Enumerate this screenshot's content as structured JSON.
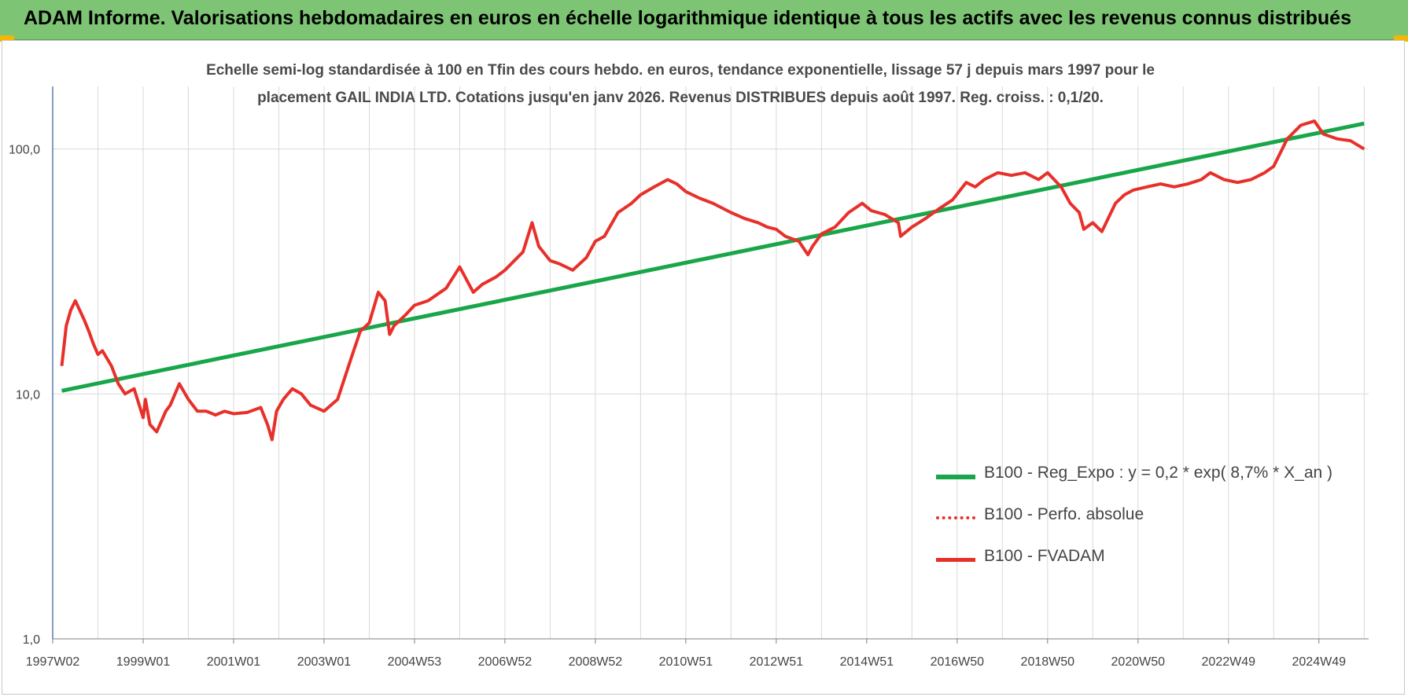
{
  "banner": {
    "title": "ADAM Informe. Valorisations hebdomadaires en euros en échelle logarithmique identique à tous les actifs avec les revenus connus distribués"
  },
  "colors": {
    "banner_bg": "#7dc474",
    "corner_accent": "#f2b705",
    "regression": "#19a64a",
    "performance": "#e8302a",
    "axis_text": "#444444",
    "grid": "#d9d9d9"
  },
  "chart_data": {
    "type": "line",
    "title_line1": "Echelle semi-log standardisée à 100 en Tfin des cours hebdo. en euros, tendance exponentielle, lissage 57 j depuis mars 1997 pour le",
    "title_line2": "placement GAIL INDIA LTD. Cotations jusqu'en janv 2026. Revenus DISTRIBUES depuis août 1997. Reg. croiss. : 0,1/20.",
    "y_scale": "log",
    "ylim": [
      1,
      180
    ],
    "y_ticks": [
      1,
      10,
      100
    ],
    "y_tick_labels": [
      "1,0",
      "10,0",
      "100,0"
    ],
    "x_range_years": [
      1997.0,
      2026.1
    ],
    "x_ticks": [
      {
        "label": "1997W02",
        "year": 1997.0
      },
      {
        "label": "1999W01",
        "year": 1999.0
      },
      {
        "label": "2001W01",
        "year": 2001.0
      },
      {
        "label": "2003W01",
        "year": 2003.0
      },
      {
        "label": "2004W53",
        "year": 2005.0
      },
      {
        "label": "2006W52",
        "year": 2007.0
      },
      {
        "label": "2008W52",
        "year": 2009.0
      },
      {
        "label": "2010W51",
        "year": 2011.0
      },
      {
        "label": "2012W51",
        "year": 2013.0
      },
      {
        "label": "2014W51",
        "year": 2015.0
      },
      {
        "label": "2016W50",
        "year": 2017.0
      },
      {
        "label": "2018W50",
        "year": 2019.0
      },
      {
        "label": "2020W50",
        "year": 2021.0
      },
      {
        "label": "2022W49",
        "year": 2023.0
      },
      {
        "label": "2024W49",
        "year": 2025.0
      }
    ],
    "grid": true,
    "legend_position": "right",
    "series": [
      {
        "name": "B100 - Reg_Expo : y = 0,2 * exp( 8,7% *  X_an )",
        "style": "solid",
        "x": [
          1997.2,
          2026.0
        ],
        "y": [
          10.3,
          127
        ]
      },
      {
        "name": "B100 - Perfo. absolue",
        "style": "dotted",
        "x": [],
        "y": []
      },
      {
        "name": "B100 - FVADAM",
        "style": "solid",
        "x": [
          1997.2,
          1997.3,
          1997.4,
          1997.5,
          1997.7,
          1997.8,
          1997.9,
          1998.0,
          1998.1,
          1998.3,
          1998.45,
          1998.6,
          1998.8,
          1999.0,
          1999.05,
          1999.15,
          1999.3,
          1999.5,
          1999.6,
          1999.8,
          2000.0,
          2000.2,
          2000.4,
          2000.6,
          2000.8,
          2001.0,
          2001.3,
          2001.6,
          2001.75,
          2001.85,
          2001.95,
          2002.1,
          2002.3,
          2002.5,
          2002.7,
          2003.0,
          2003.3,
          2003.6,
          2003.8,
          2004.0,
          2004.2,
          2004.35,
          2004.45,
          2004.55,
          2004.8,
          2005.0,
          2005.3,
          2005.7,
          2006.0,
          2006.3,
          2006.5,
          2006.8,
          2007.0,
          2007.4,
          2007.6,
          2007.75,
          2008.0,
          2008.2,
          2008.5,
          2008.8,
          2009.0,
          2009.2,
          2009.5,
          2009.8,
          2010.0,
          2010.3,
          2010.6,
          2010.8,
          2011.0,
          2011.3,
          2011.6,
          2012.0,
          2012.3,
          2012.6,
          2012.8,
          2013.0,
          2013.2,
          2013.5,
          2013.7,
          2013.8,
          2014.0,
          2014.3,
          2014.6,
          2014.9,
          2015.1,
          2015.4,
          2015.7,
          2015.75,
          2016.0,
          2016.3,
          2016.6,
          2016.9,
          2017.2,
          2017.4,
          2017.6,
          2017.9,
          2018.2,
          2018.5,
          2018.8,
          2019.0,
          2019.3,
          2019.5,
          2019.7,
          2019.8,
          2020.0,
          2020.2,
          2020.5,
          2020.7,
          2020.9,
          2021.2,
          2021.5,
          2021.8,
          2022.1,
          2022.4,
          2022.6,
          2022.9,
          2023.2,
          2023.5,
          2023.8,
          2024.0,
          2024.3,
          2024.6,
          2024.9,
          2025.1,
          2025.4,
          2025.7,
          2026.0
        ],
        "y": [
          13,
          19,
          22,
          24,
          20,
          18,
          16,
          14.5,
          15,
          13,
          11,
          10,
          10.5,
          8,
          9.5,
          7.5,
          7,
          8.5,
          9,
          11,
          9.5,
          8.5,
          8.5,
          8.2,
          8.5,
          8.3,
          8.4,
          8.8,
          7.5,
          6.5,
          8.5,
          9.5,
          10.5,
          10,
          9,
          8.5,
          9.5,
          14,
          18,
          19.5,
          26,
          24,
          17.5,
          19,
          21,
          23,
          24,
          27,
          33,
          26,
          28,
          30,
          32,
          38,
          50,
          40,
          35,
          34,
          32,
          36,
          42,
          44,
          55,
          60,
          65,
          70,
          75,
          72,
          67,
          63,
          60,
          55,
          52,
          50,
          48,
          47,
          44,
          42,
          37,
          40,
          45,
          48,
          55,
          60,
          56,
          54,
          50,
          44,
          48,
          52,
          57,
          62,
          73,
          70,
          75,
          80,
          78,
          80,
          75,
          80,
          70,
          60,
          55,
          47,
          50,
          46,
          60,
          65,
          68,
          70,
          72,
          70,
          72,
          75,
          80,
          75,
          73,
          75,
          80,
          85,
          110,
          125,
          130,
          115,
          110,
          108,
          100
        ]
      }
    ]
  }
}
